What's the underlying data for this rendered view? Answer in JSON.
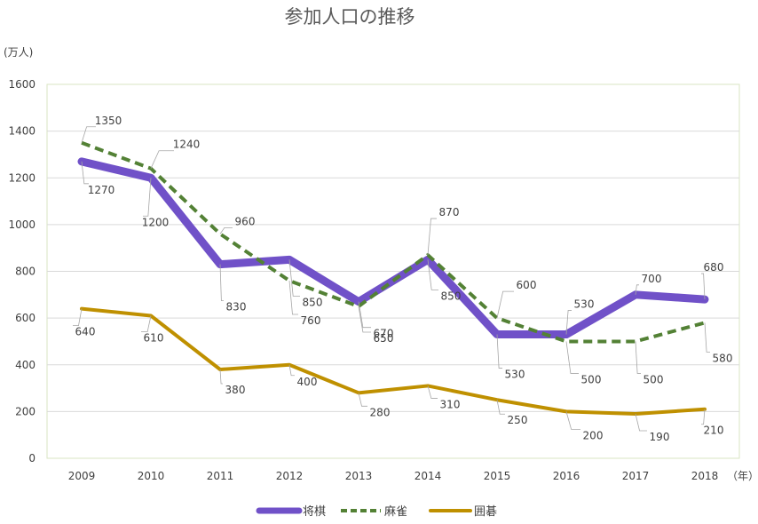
{
  "chart_data": {
    "type": "line",
    "title": "参加人口の推移",
    "ylabel": "(万人)",
    "xlabel": "（年）",
    "ylim": [
      0,
      1600
    ],
    "yticks": [
      0,
      200,
      400,
      600,
      800,
      1000,
      1200,
      1400,
      1600
    ],
    "grid": true,
    "legend_position": "bottom",
    "categories": [
      "2009",
      "2010",
      "2011",
      "2012",
      "2013",
      "2014",
      "2015",
      "2016",
      "2017",
      "2018"
    ],
    "series": [
      {
        "name": "将棋",
        "color": "#7051c8",
        "style": "solid-thick",
        "values": [
          1270,
          1200,
          830,
          850,
          670,
          850,
          530,
          530,
          700,
          680
        ]
      },
      {
        "name": "麻雀",
        "color": "#538135",
        "style": "dashed",
        "values": [
          1350,
          1240,
          960,
          760,
          650,
          870,
          600,
          500,
          500,
          580
        ]
      },
      {
        "name": "囲碁",
        "color": "#bf9000",
        "style": "solid",
        "values": [
          640,
          610,
          380,
          400,
          280,
          310,
          250,
          200,
          190,
          210
        ]
      }
    ]
  }
}
